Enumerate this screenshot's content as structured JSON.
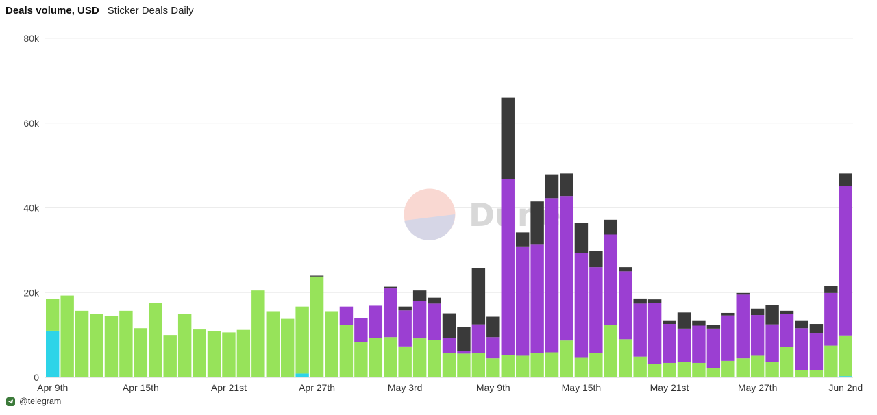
{
  "header": {
    "title": "Deals volume, USD",
    "subtitle": "Sticker Deals Daily"
  },
  "footer": {
    "handle": "@telegram",
    "icon": "telegram-icon"
  },
  "watermark": {
    "text": "Dune"
  },
  "chart_data": {
    "type": "bar",
    "stacked": true,
    "ylim": [
      0,
      80000
    ],
    "yticks": [
      0,
      20000,
      40000,
      60000,
      80000
    ],
    "ytick_labels": [
      "0",
      "20k",
      "40k",
      "60k",
      "80k"
    ],
    "xtick_labels": [
      "Apr 9th",
      "Apr 15th",
      "Apr 21st",
      "Apr 27th",
      "May 3rd",
      "May 9th",
      "May 15th",
      "May 21st",
      "May 27th",
      "Jun 2nd"
    ],
    "xtick_index": [
      0,
      6,
      12,
      18,
      24,
      30,
      36,
      42,
      48,
      54
    ],
    "grid": true,
    "colors": {
      "cyan": "#2dd4e8",
      "green": "#97e35a",
      "purple": "#9b3fd2",
      "dark": "#3a3a3a"
    },
    "categories": [
      "Apr 9",
      "Apr 10",
      "Apr 11",
      "Apr 12",
      "Apr 13",
      "Apr 14",
      "Apr 15",
      "Apr 16",
      "Apr 17",
      "Apr 18",
      "Apr 19",
      "Apr 20",
      "Apr 21",
      "Apr 22",
      "Apr 23",
      "Apr 24",
      "Apr 25",
      "Apr 26",
      "Apr 27",
      "Apr 28",
      "Apr 29",
      "Apr 30",
      "May 1",
      "May 2",
      "May 3",
      "May 4",
      "May 5",
      "May 6",
      "May 7",
      "May 8",
      "May 9",
      "May 10",
      "May 11",
      "May 12",
      "May 13",
      "May 14",
      "May 15",
      "May 16",
      "May 17",
      "May 18",
      "May 19",
      "May 20",
      "May 21",
      "May 22",
      "May 23",
      "May 24",
      "May 25",
      "May 26",
      "May 27",
      "May 28",
      "May 29",
      "May 30",
      "May 31",
      "Jun 1",
      "Jun 2"
    ],
    "series": [
      {
        "color_key": "cyan",
        "values": [
          11000,
          0,
          0,
          0,
          0,
          0,
          0,
          0,
          0,
          0,
          0,
          0,
          0,
          0,
          0,
          0,
          0,
          900,
          0,
          0,
          0,
          0,
          0,
          0,
          0,
          0,
          0,
          0,
          0,
          0,
          0,
          0,
          0,
          0,
          0,
          0,
          0,
          0,
          0,
          0,
          0,
          0,
          0,
          0,
          0,
          0,
          0,
          0,
          0,
          0,
          0,
          0,
          0,
          0,
          300
        ]
      },
      {
        "color_key": "green",
        "values": [
          7500,
          19300,
          15700,
          14900,
          14400,
          15700,
          11600,
          17500,
          10000,
          15000,
          11300,
          10900,
          10600,
          11200,
          20500,
          15600,
          13800,
          15800,
          23800,
          15600,
          12300,
          8400,
          9300,
          9500,
          7300,
          9200,
          8800,
          5700,
          5600,
          5800,
          4500,
          5200,
          5100,
          5800,
          5900,
          8700,
          4600,
          5700,
          12400,
          9000,
          4900,
          3200,
          3400,
          3600,
          3400,
          2200,
          3900,
          4500,
          5100,
          3700,
          7200,
          1700,
          1700,
          7500,
          9600
        ]
      },
      {
        "color_key": "purple",
        "values": [
          0,
          0,
          0,
          0,
          0,
          0,
          0,
          0,
          0,
          0,
          0,
          0,
          0,
          0,
          0,
          0,
          0,
          0,
          0,
          0,
          4400,
          5600,
          7600,
          11500,
          8500,
          8800,
          8600,
          3600,
          600,
          6700,
          5000,
          41600,
          25800,
          25500,
          36400,
          34100,
          24700,
          20300,
          21300,
          16000,
          12500,
          14300,
          9200,
          7900,
          8800,
          9300,
          10700,
          15000,
          9600,
          8800,
          7800,
          9900,
          8800,
          12400,
          35200
        ]
      },
      {
        "color_key": "dark",
        "values": [
          0,
          0,
          0,
          0,
          0,
          0,
          0,
          0,
          0,
          0,
          0,
          0,
          0,
          0,
          0,
          0,
          0,
          0,
          200,
          0,
          0,
          0,
          0,
          400,
          900,
          2500,
          1400,
          5800,
          5600,
          13200,
          4800,
          19200,
          3300,
          10200,
          5600,
          5300,
          7100,
          3900,
          3500,
          1000,
          1200,
          900,
          700,
          3800,
          1100,
          900,
          600,
          400,
          1500,
          4500,
          700,
          1700,
          2100,
          1600,
          3000
        ]
      }
    ]
  }
}
